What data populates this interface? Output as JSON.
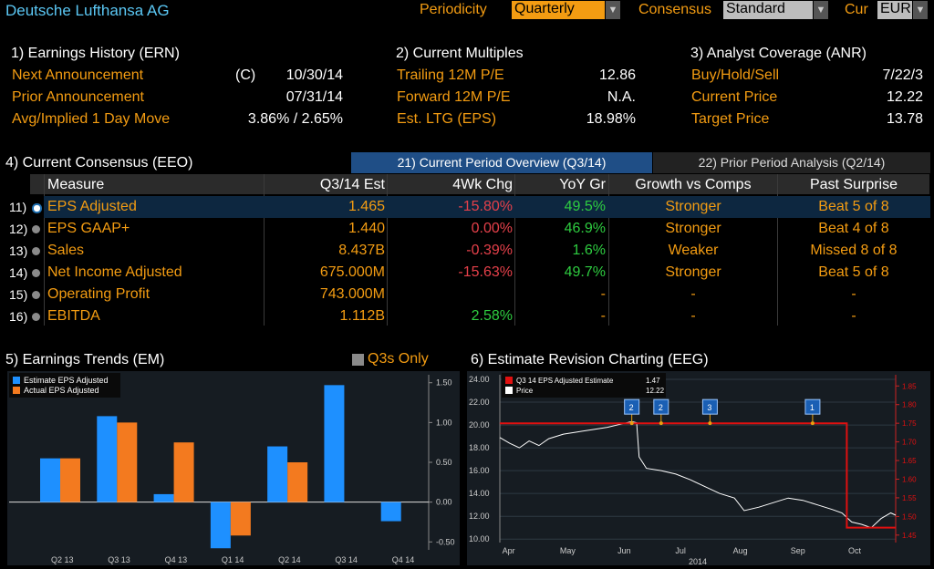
{
  "header": {
    "title": "Deutsche Lufthansa AG",
    "periodicity_label": "Periodicity",
    "periodicity_value": "Quarterly",
    "consensus_label": "Consensus",
    "consensus_value": "Standard",
    "cur_label": "Cur",
    "cur_value": "EUR"
  },
  "ern": {
    "heading": "1) Earnings History (ERN)",
    "rows": [
      {
        "label": "Next Announcement",
        "flag": "(C)",
        "value": "10/30/14"
      },
      {
        "label": "Prior Announcement",
        "flag": "",
        "value": "07/31/14"
      },
      {
        "label": "Avg/Implied 1 Day Move",
        "flag": "",
        "value": "3.86% / 2.65%"
      }
    ]
  },
  "multiples": {
    "heading": "2) Current Multiples",
    "rows": [
      {
        "label": "Trailing 12M P/E",
        "value": "12.86"
      },
      {
        "label": "Forward 12M P/E",
        "value": "N.A."
      },
      {
        "label": "Est. LTG (EPS)",
        "value": "18.98%"
      }
    ]
  },
  "anr": {
    "heading": "3) Analyst Coverage (ANR)",
    "rows": [
      {
        "label": "Buy/Hold/Sell",
        "value": "7/22/3"
      },
      {
        "label": "Current Price",
        "value": "12.22"
      },
      {
        "label": "Target Price",
        "value": "13.78"
      }
    ]
  },
  "eeo": {
    "heading": "4) Current Consensus (EEO)",
    "tab1": "21) Current Period Overview (Q3/14)",
    "tab2": "22) Prior Period Analysis (Q2/14)",
    "columns": [
      "Measure",
      "Q3/14 Est",
      "4Wk Chg",
      "YoY Gr",
      "Growth vs Comps",
      "Past Surprise"
    ],
    "rows": [
      {
        "num": "11)",
        "measure": "EPS Adjusted",
        "est": "1.465",
        "chg": "-15.80%",
        "chg_color": "red",
        "yoy": "49.5%",
        "yoy_color": "green",
        "growth": "Stronger",
        "surprise": "Beat 5 of 8"
      },
      {
        "num": "12)",
        "measure": "EPS GAAP+",
        "est": "1.440",
        "chg": "0.00%",
        "chg_color": "red",
        "yoy": "46.9%",
        "yoy_color": "green",
        "growth": "Stronger",
        "surprise": "Beat 4 of 8"
      },
      {
        "num": "13)",
        "measure": "Sales",
        "est": "8.437B",
        "chg": "-0.39%",
        "chg_color": "red",
        "yoy": "1.6%",
        "yoy_color": "green",
        "growth": "Weaker",
        "surprise": "Missed 8 of 8"
      },
      {
        "num": "14)",
        "measure": "Net Income Adjusted",
        "est": "675.000M",
        "chg": "-15.63%",
        "chg_color": "red",
        "yoy": "49.7%",
        "yoy_color": "green",
        "growth": "Stronger",
        "surprise": "Beat 5 of 8"
      },
      {
        "num": "15)",
        "measure": "Operating Profit",
        "est": "743.000M",
        "chg": "",
        "chg_color": "red",
        "yoy": "-",
        "yoy_color": "orange",
        "growth": "-",
        "surprise": "-"
      },
      {
        "num": "16)",
        "measure": "EBITDA",
        "est": "1.112B",
        "chg": "2.58%",
        "chg_color": "green",
        "yoy": "-",
        "yoy_color": "orange",
        "growth": "-",
        "surprise": "-"
      }
    ]
  },
  "em": {
    "heading": "5) Earnings Trends (EM)",
    "toggle_label": "Q3s Only"
  },
  "eeg": {
    "heading": "6) Estimate Revision Charting (EEG)"
  },
  "chart_data": [
    {
      "type": "bar",
      "categories": [
        "Q2 13",
        "Q3 13",
        "Q4 13",
        "Q1 14",
        "Q2 14",
        "Q3 14",
        "Q4 14"
      ],
      "series": [
        {
          "name": "Estimate EPS Adjusted",
          "color": "#1e90ff",
          "values": [
            0.55,
            1.08,
            0.1,
            -0.58,
            0.7,
            1.47,
            -0.24
          ]
        },
        {
          "name": "Actual EPS Adjusted",
          "color": "#f37a1f",
          "values": [
            0.55,
            1.0,
            0.75,
            -0.42,
            0.5,
            null,
            null
          ]
        }
      ],
      "yticks": [
        "1.50",
        "1.00",
        "0.50",
        "0.00",
        "-0.50"
      ],
      "ylim": [
        -0.6,
        1.6
      ]
    },
    {
      "type": "line",
      "xticks": [
        "Apr",
        "May",
        "Jun",
        "Jul",
        "Aug",
        "Sep",
        "Oct"
      ],
      "xlabel": "2014",
      "legend": [
        {
          "name": "Q3 14 EPS Adjusted Estimate",
          "value": "1.47",
          "color": "#e01010"
        },
        {
          "name": "Price",
          "value": "12.22",
          "color": "#ffffff"
        }
      ],
      "yticks_left": [
        "24.00",
        "22.00",
        "20.00",
        "18.00",
        "16.00",
        "14.00",
        "12.00",
        "10.00"
      ],
      "yticks_right": [
        "1.85",
        "1.80",
        "1.75",
        "1.70",
        "1.65",
        "1.60",
        "1.55",
        "1.50",
        "1.45"
      ],
      "ylim_left": [
        9.7,
        24.4
      ],
      "ylim_right": [
        1.43,
        1.88
      ],
      "price_series": [
        [
          0.0,
          18.9
        ],
        [
          0.2,
          18.4
        ],
        [
          0.4,
          18.0
        ],
        [
          0.6,
          18.6
        ],
        [
          0.8,
          18.2
        ],
        [
          1.0,
          18.8
        ],
        [
          1.3,
          19.2
        ],
        [
          1.6,
          19.4
        ],
        [
          1.9,
          19.6
        ],
        [
          2.2,
          19.8
        ],
        [
          2.5,
          20.1
        ],
        [
          2.7,
          20.3
        ],
        [
          2.8,
          20.2
        ],
        [
          2.85,
          17.2
        ],
        [
          3.0,
          16.2
        ],
        [
          3.3,
          16.0
        ],
        [
          3.6,
          15.7
        ],
        [
          3.9,
          15.2
        ],
        [
          4.2,
          14.6
        ],
        [
          4.5,
          14.0
        ],
        [
          4.8,
          13.6
        ],
        [
          5.0,
          12.5
        ],
        [
          5.3,
          12.8
        ],
        [
          5.6,
          13.2
        ],
        [
          5.9,
          13.6
        ],
        [
          6.2,
          13.4
        ],
        [
          6.5,
          13.0
        ],
        [
          6.8,
          12.6
        ],
        [
          7.0,
          12.3
        ],
        [
          7.2,
          11.5
        ],
        [
          7.4,
          11.3
        ],
        [
          7.6,
          11.0
        ],
        [
          7.8,
          11.8
        ],
        [
          8.0,
          12.3
        ],
        [
          8.1,
          12.1
        ]
      ],
      "estimate_series": [
        [
          0.0,
          1.75
        ],
        [
          7.1,
          1.75
        ],
        [
          7.1,
          1.47
        ],
        [
          8.1,
          1.47
        ]
      ],
      "revision_markers": [
        {
          "label": "2",
          "x": 2.7
        },
        {
          "label": "2",
          "x": 3.3
        },
        {
          "label": "3",
          "x": 4.3
        },
        {
          "label": "1",
          "x": 6.4
        }
      ]
    }
  ]
}
